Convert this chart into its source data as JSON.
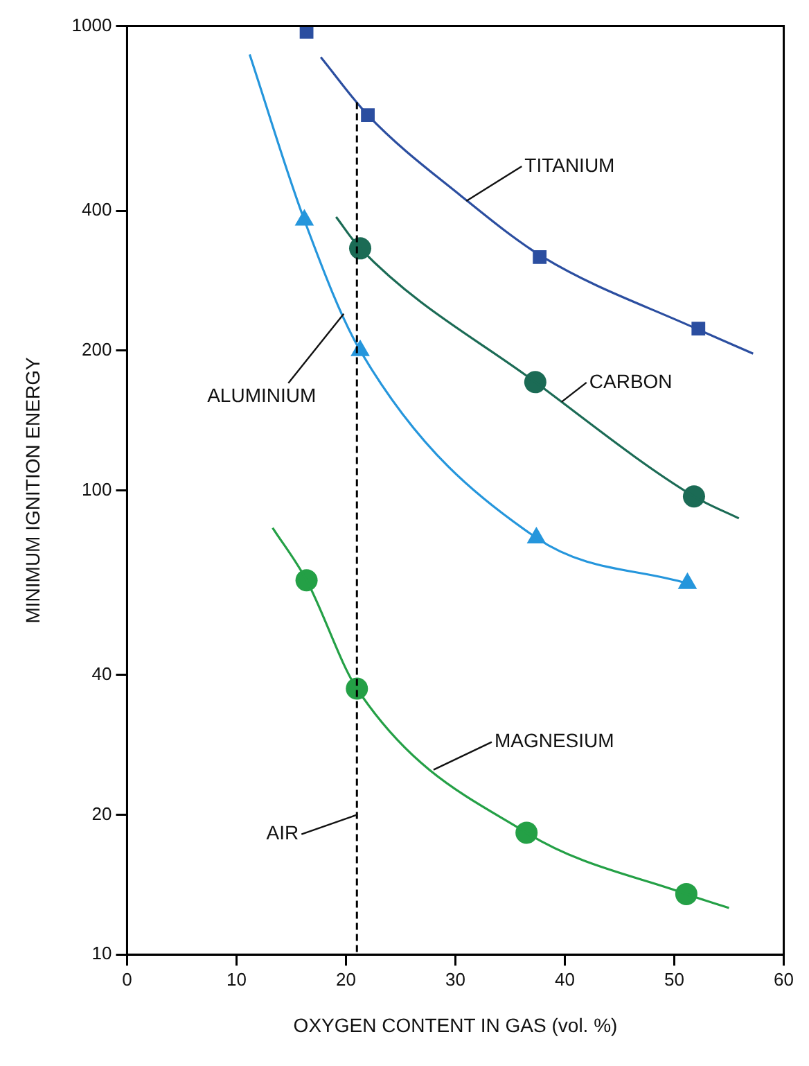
{
  "chart_data": {
    "type": "scatter",
    "xlabel": "OXYGEN CONTENT IN GAS (vol. %)",
    "ylabel": "MINIMUM IGNITION ENERGY",
    "log": "y",
    "grid": false,
    "legend": false,
    "xlim": [
      0,
      60
    ],
    "xticks": [
      0,
      10,
      20,
      30,
      40,
      50,
      60
    ],
    "ylim": [
      10,
      1000
    ],
    "yticks": [
      10,
      20,
      40,
      100,
      200,
      400,
      1000
    ],
    "series": [
      {
        "type": "line",
        "marker": "none",
        "color": "#2b4ea0",
        "x": [
          17.7,
          22,
          30.5,
          38,
          52,
          57.2
        ],
        "values": [
          857,
          643,
          431,
          318,
          223,
          197
        ]
      },
      {
        "marker": "square",
        "color": "#2b4ea0",
        "x": [
          16.4,
          22,
          37.7,
          52.2
        ],
        "values": [
          972,
          643,
          318,
          223
        ]
      },
      {
        "type": "line",
        "marker": "none",
        "color": "#1b6b55",
        "x": [
          19.1,
          21.3,
          37.3,
          51.8,
          55.9
        ],
        "values": [
          388,
          332,
          171,
          97,
          87
        ]
      },
      {
        "marker": "circle",
        "color": "#1b6b55",
        "x": [
          21.3,
          37.3,
          51.8
        ],
        "values": [
          332,
          171,
          97
        ]
      },
      {
        "type": "line",
        "marker": "none",
        "color": "#2596dc",
        "x": [
          11.2,
          16.2,
          21.3,
          37.4,
          51.2
        ],
        "values": [
          869,
          382,
          200,
          79,
          63
        ]
      },
      {
        "marker": "triangle",
        "color": "#2596dc",
        "x": [
          16.2,
          21.3,
          37.4,
          51.2
        ],
        "values": [
          382,
          200,
          79,
          63
        ]
      },
      {
        "type": "line",
        "marker": "none",
        "color": "#24a046",
        "x": [
          13.3,
          16.4,
          21,
          36.5,
          51.1,
          55
        ],
        "values": [
          83,
          64,
          37.4,
          18.3,
          13.5,
          12.6
        ]
      },
      {
        "marker": "circle",
        "color": "#24a046",
        "x": [
          16.4,
          21,
          36.5,
          51.1
        ],
        "values": [
          64,
          37.4,
          18.3,
          13.5
        ]
      }
    ],
    "ref_lines": [
      {
        "axis": "x",
        "value": 21,
        "line_style": "dashed",
        "color": "#000000"
      }
    ],
    "annotations": [
      {
        "text": "TITANIUM",
        "x": 31,
        "y": 420
      },
      {
        "text": "CARBON",
        "x": 39.7,
        "y": 155
      },
      {
        "text": "ALUMINIUM",
        "x": 19.8,
        "y": 240
      },
      {
        "text": "MAGNESIUM",
        "x": 28,
        "y": 25
      },
      {
        "text": "AIR",
        "x": 21,
        "y": 20
      }
    ]
  }
}
